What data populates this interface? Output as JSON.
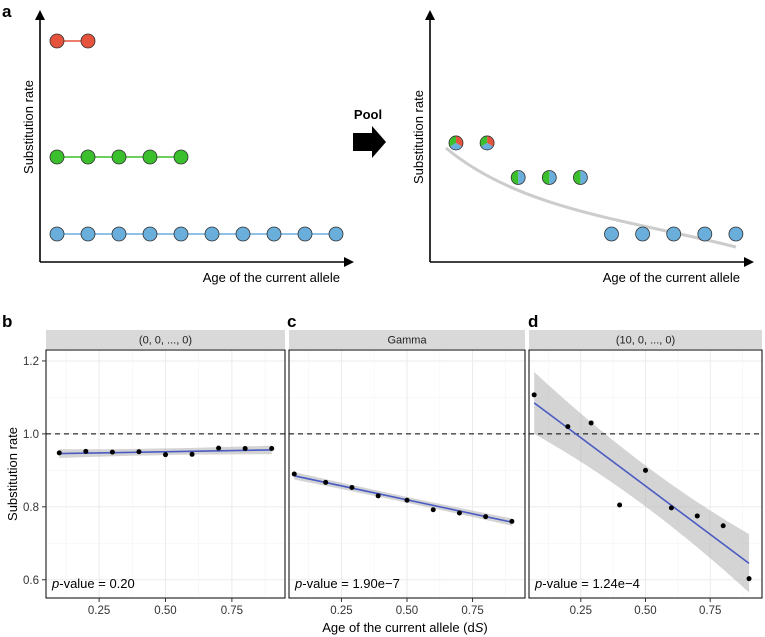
{
  "panel_labels": {
    "a": "a",
    "b": "b",
    "c": "c",
    "d": "d"
  },
  "pool_label": "Pool",
  "colors": {
    "red": "#e5533d",
    "green": "#3bbf2c",
    "blue": "#6aaedc",
    "fit": "#4a5bc4",
    "band": "#b8b8b8",
    "grid": "#ebebeb"
  },
  "chart_data": [
    {
      "type": "scatter",
      "panel": "a-left",
      "title": "",
      "xlabel": "Age of the current allele",
      "ylabel": "Substitution rate",
      "series": [
        {
          "name": "red",
          "color": "red",
          "x": [
            1,
            2
          ],
          "y": [
            3,
            3
          ]
        },
        {
          "name": "green",
          "color": "green",
          "x": [
            1,
            2,
            3,
            4,
            5
          ],
          "y": [
            2,
            2,
            2,
            2,
            2
          ]
        },
        {
          "name": "blue",
          "color": "blue",
          "x": [
            1,
            2,
            3,
            4,
            5,
            6,
            7,
            8,
            9,
            10
          ],
          "y": [
            1,
            1,
            1,
            1,
            1,
            1,
            1,
            1,
            1,
            1
          ]
        }
      ]
    },
    {
      "type": "scatter",
      "panel": "a-right",
      "title": "",
      "xlabel": "Age of the current allele",
      "ylabel": "Substitution rate",
      "points": [
        {
          "x": 1,
          "y": 2.45,
          "mix": "rgb"
        },
        {
          "x": 2,
          "y": 2.45,
          "mix": "rgb"
        },
        {
          "x": 3,
          "y": 1.9,
          "mix": "gb"
        },
        {
          "x": 4,
          "y": 1.9,
          "mix": "gb"
        },
        {
          "x": 5,
          "y": 1.9,
          "mix": "gb"
        },
        {
          "x": 6,
          "y": 1.0,
          "mix": "b"
        },
        {
          "x": 7,
          "y": 1.0,
          "mix": "b"
        },
        {
          "x": 8,
          "y": 1.0,
          "mix": "b"
        },
        {
          "x": 9,
          "y": 1.0,
          "mix": "b"
        },
        {
          "x": 10,
          "y": 1.0,
          "mix": "b"
        }
      ],
      "trend": "decreasing curve"
    },
    {
      "type": "scatter",
      "panel": "b",
      "strip": "(0, 0, ..., 0)",
      "pvalue": {
        "prefix": "p",
        "text": "-value = 0.20"
      },
      "x": [
        0.1,
        0.2,
        0.3,
        0.4,
        0.5,
        0.6,
        0.7,
        0.8,
        0.9
      ],
      "y": [
        0.948,
        0.952,
        0.95,
        0.951,
        0.943,
        0.944,
        0.961,
        0.96,
        0.96
      ],
      "fit": {
        "x0": 0.1,
        "y0": 0.946,
        "x1": 0.9,
        "y1": 0.956,
        "band": [
          0.012,
          0.006,
          0.012
        ]
      }
    },
    {
      "type": "scatter",
      "panel": "c",
      "strip": "Gamma",
      "pvalue": {
        "prefix": "p",
        "text": "-value = 1.90e−7"
      },
      "x": [
        0.07,
        0.19,
        0.29,
        0.39,
        0.5,
        0.6,
        0.7,
        0.8,
        0.9
      ],
      "y": [
        0.89,
        0.867,
        0.853,
        0.83,
        0.818,
        0.792,
        0.783,
        0.773,
        0.76
      ],
      "fit": {
        "x0": 0.07,
        "y0": 0.885,
        "x1": 0.9,
        "y1": 0.758,
        "band": [
          0.01,
          0.006,
          0.01
        ]
      }
    },
    {
      "type": "scatter",
      "panel": "d",
      "strip": "(10, 0, ..., 0)",
      "pvalue": {
        "prefix": "p",
        "text": "-value = 1.24e−4"
      },
      "x": [
        0.07,
        0.2,
        0.29,
        0.4,
        0.5,
        0.6,
        0.7,
        0.8,
        0.9
      ],
      "y": [
        1.107,
        1.02,
        1.03,
        0.805,
        0.9,
        0.797,
        0.775,
        0.748,
        0.603
      ],
      "fit": {
        "x0": 0.07,
        "y0": 1.085,
        "x1": 0.9,
        "y1": 0.645,
        "band": [
          0.085,
          0.03,
          0.08
        ]
      }
    }
  ],
  "shared_axes": {
    "xlabel_prefix": "Age of the current allele (d",
    "xlabel_italic": "S",
    "xlabel_suffix": ")",
    "ylabel": "Substitution rate",
    "xticks": [
      "0.25",
      "0.50",
      "0.75"
    ],
    "xtick_values": [
      0.25,
      0.5,
      0.75
    ],
    "yticks": [
      "0.6",
      "0.8",
      "1.0",
      "1.2"
    ],
    "ytick_values": [
      0.6,
      0.8,
      1.0,
      1.2
    ],
    "xlim": [
      0.05,
      0.95
    ],
    "ylim": [
      0.55,
      1.23
    ],
    "hline": 1.0
  }
}
